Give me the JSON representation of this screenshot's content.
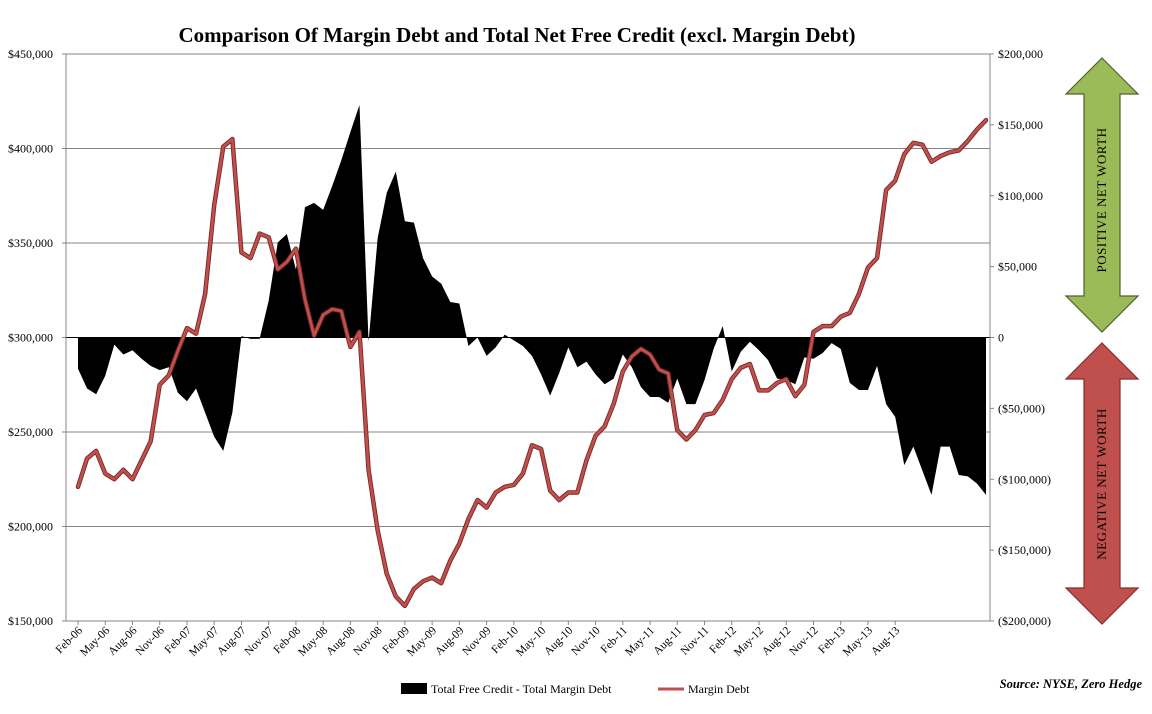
{
  "chart_data": {
    "type": "area+line",
    "title": "Comparison  Of Margin Debt and Total Net Free Credit (excl. Margin Debt)",
    "source": "Source: NYSE, Zero Hedge",
    "left_axis": {
      "min": 150000,
      "max": 450000,
      "tick_values": [
        450000,
        400000,
        350000,
        300000,
        250000,
        200000,
        150000
      ],
      "tick_labels": [
        "$450,000",
        "$400,000",
        "$350,000",
        "$300,000",
        "$250,000",
        "$200,000",
        "$150,000"
      ]
    },
    "right_axis": {
      "min": -200000,
      "max": 200000,
      "tick_values": [
        200000,
        150000,
        100000,
        50000,
        0,
        -50000,
        -100000,
        -150000,
        -200000
      ],
      "tick_labels": [
        "$200,000",
        "$150,000",
        "$100,000",
        "$50,000",
        "0",
        "($50,000)",
        "($100,000)",
        "($150,000)",
        "($200,000)"
      ]
    },
    "x_tick_labels": [
      "Feb-06",
      "May-06",
      "Aug-06",
      "Nov-06",
      "Feb-07",
      "May-07",
      "Aug-07",
      "Nov-07",
      "Feb-08",
      "May-08",
      "Aug-08",
      "Nov-08",
      "Feb-09",
      "May-09",
      "Aug-09",
      "Nov-09",
      "Feb-10",
      "May-10",
      "Aug-10",
      "Nov-10",
      "Feb-11",
      "May-11",
      "Aug-11",
      "Nov-11",
      "Feb-12",
      "May-12",
      "Aug-12",
      "Nov-12",
      "Feb-13",
      "May-13",
      "Aug-13"
    ],
    "series": [
      {
        "name": "Total Free Credit - Total Margin Debt",
        "axis": "right",
        "style": "area",
        "color": "#000000",
        "values": [
          -22000,
          -36000,
          -40000,
          -27000,
          -5000,
          -12000,
          -9000,
          -15000,
          -20000,
          -23000,
          -21000,
          -39000,
          -45000,
          -36000,
          -53000,
          -70000,
          -80000,
          -53000,
          1000,
          -1000,
          -1000,
          26000,
          67000,
          73000,
          48000,
          92000,
          95000,
          90000,
          107000,
          125000,
          145000,
          164000,
          -3000,
          70000,
          102000,
          117000,
          82000,
          81000,
          56000,
          43000,
          38000,
          25000,
          24000,
          -6000,
          0,
          -13000,
          -7000,
          2000,
          -2000,
          -6000,
          -13000,
          -26000,
          -41000,
          -25000,
          -7000,
          -21000,
          -17000,
          -26000,
          -33000,
          -29000,
          -12000,
          -21000,
          -35000,
          -42000,
          -42000,
          -46000,
          -29000,
          -47000,
          -47000,
          -30000,
          -8000,
          8000,
          -24000,
          -10000,
          -3000,
          -9000,
          -16000,
          -29000,
          -30000,
          -33000,
          -14000,
          -15000,
          -11000,
          -4000,
          -8000,
          -32000,
          -37000,
          -37000,
          -20000,
          -47000,
          -56000,
          -90000,
          -77000,
          -94000,
          -111000,
          -77000,
          -77000,
          -97000,
          -98000,
          -103000,
          -111000
        ]
      },
      {
        "name": "Margin Debt",
        "axis": "left",
        "style": "line",
        "color": "#c0504d",
        "values": [
          221000,
          236000,
          240000,
          228000,
          225000,
          230000,
          225000,
          235000,
          245000,
          275000,
          280000,
          293000,
          305000,
          302000,
          323000,
          370000,
          401000,
          405000,
          345000,
          342000,
          355000,
          353000,
          336000,
          340000,
          347000,
          320000,
          301000,
          312000,
          315000,
          314000,
          295000,
          303000,
          230000,
          198000,
          175000,
          163000,
          158000,
          167000,
          171000,
          173000,
          170000,
          182000,
          191000,
          204000,
          214000,
          210000,
          218000,
          221000,
          222000,
          228000,
          243000,
          241000,
          219000,
          214000,
          218000,
          218000,
          235000,
          248000,
          253000,
          265000,
          282000,
          290000,
          294000,
          291000,
          283000,
          281000,
          251000,
          246000,
          251000,
          259000,
          260000,
          267000,
          278000,
          284000,
          286000,
          272000,
          272000,
          276000,
          278000,
          269000,
          275000,
          303000,
          306000,
          306000,
          311000,
          313000,
          323000,
          337000,
          342000,
          378000,
          383000,
          397000,
          403000,
          402000,
          393000,
          396000,
          398000,
          399000,
          404000,
          410000,
          415000
        ]
      }
    ],
    "legend": [
      "Total Free Credit - Total Margin Debt",
      "Margin Debt"
    ],
    "legend_placement": "bottom-center"
  },
  "annotations": {
    "positive": {
      "text": "POSITIVE  NET WORTH",
      "color": "#9bbb59",
      "stroke": "#4f6228"
    },
    "negative": {
      "text": "NEGATIVE NET WORTH",
      "color": "#c0504d",
      "stroke": "#8c2a28"
    }
  },
  "colors": {
    "grid": "#868686",
    "axis": "#868686",
    "zero_line": "#000000"
  }
}
